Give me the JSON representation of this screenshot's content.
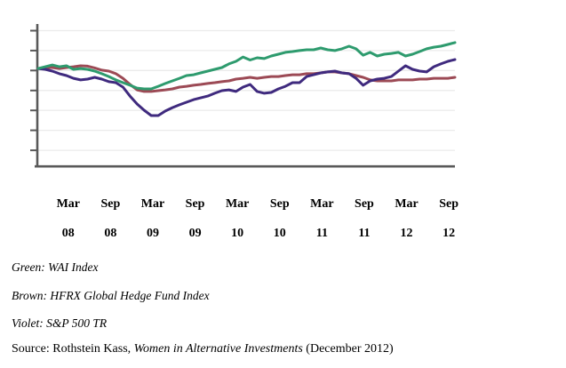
{
  "chart_data": {
    "type": "line",
    "title": "",
    "xlabel": "",
    "ylabel": "",
    "x_tick_labels": [
      {
        "month": "Mar",
        "year": "08"
      },
      {
        "month": "Sep",
        "year": "08"
      },
      {
        "month": "Mar",
        "year": "09"
      },
      {
        "month": "Sep",
        "year": "09"
      },
      {
        "month": "Mar",
        "year": "10"
      },
      {
        "month": "Sep",
        "year": "10"
      },
      {
        "month": "Mar",
        "year": "11"
      },
      {
        "month": "Sep",
        "year": "11"
      },
      {
        "month": "Mar",
        "year": "12"
      },
      {
        "month": "Sep",
        "year": "12"
      }
    ],
    "ylim": [
      52,
      122
    ],
    "yticks": [
      60,
      70,
      80,
      90,
      100,
      110,
      120
    ],
    "ytick_labels_visible": false,
    "grid": true,
    "legend_position": "text-below-chart",
    "value_note": "Y-axis carries no numeric labels; series values are estimated index levels read against gridlines with the common starting level taken as 100 and one gridline step as 10.",
    "series": [
      {
        "name": "WAI Index",
        "color_word": "Green",
        "color": "#2e9b6e",
        "values": [
          101.0,
          101.9,
          102.8,
          101.9,
          102.4,
          100.6,
          101.0,
          100.6,
          99.7,
          98.4,
          97.0,
          95.3,
          93.9,
          92.6,
          91.2,
          90.8,
          90.8,
          92.1,
          93.5,
          94.8,
          96.1,
          97.5,
          97.9,
          98.8,
          99.7,
          100.6,
          101.5,
          103.3,
          104.6,
          106.8,
          105.3,
          106.4,
          106.0,
          107.3,
          108.2,
          109.1,
          109.5,
          110.0,
          110.4,
          110.4,
          111.3,
          110.4,
          110.0,
          110.9,
          112.2,
          110.9,
          107.7,
          109.1,
          107.3,
          108.2,
          108.6,
          109.1,
          107.3,
          108.2,
          109.5,
          110.9,
          111.7,
          112.2,
          113.1,
          114.0
        ]
      },
      {
        "name": "HFRX Global Hedge Fund Index",
        "color_word": "Brown",
        "color": "#9c4a55",
        "values": [
          101.0,
          101.5,
          101.5,
          101.0,
          101.5,
          101.9,
          102.4,
          102.2,
          101.3,
          100.2,
          99.7,
          98.4,
          96.1,
          93.0,
          90.3,
          89.5,
          89.5,
          89.9,
          90.3,
          90.8,
          91.7,
          92.1,
          92.6,
          93.0,
          93.5,
          93.9,
          94.4,
          94.8,
          95.7,
          96.1,
          96.6,
          96.1,
          96.6,
          97.0,
          97.0,
          97.5,
          97.9,
          97.9,
          98.4,
          98.4,
          98.8,
          99.3,
          99.3,
          98.8,
          98.4,
          97.5,
          96.6,
          95.3,
          94.8,
          94.8,
          94.8,
          95.3,
          95.3,
          95.3,
          95.7,
          95.7,
          96.1,
          96.1,
          96.1,
          96.6
        ]
      },
      {
        "name": "S&P 500 TR",
        "color_word": "Violet",
        "color": "#3f2a7e",
        "values": [
          101.0,
          100.6,
          99.7,
          98.4,
          97.5,
          96.1,
          95.3,
          95.7,
          96.6,
          95.7,
          94.4,
          93.9,
          91.7,
          87.2,
          83.2,
          80.1,
          77.4,
          77.4,
          79.7,
          81.4,
          82.8,
          84.1,
          85.4,
          86.3,
          87.2,
          88.6,
          89.9,
          90.3,
          89.5,
          91.7,
          93.0,
          89.5,
          88.6,
          89.0,
          90.8,
          92.1,
          93.9,
          93.9,
          97.0,
          97.9,
          98.8,
          99.3,
          99.7,
          98.8,
          98.4,
          96.1,
          92.6,
          94.8,
          95.7,
          96.1,
          97.0,
          99.7,
          102.4,
          100.6,
          99.7,
          99.3,
          101.9,
          103.3,
          104.6,
          105.5
        ]
      }
    ]
  },
  "legend": {
    "items": [
      {
        "text": "Green: WAI Index"
      },
      {
        "text": "Brown: HFRX Global Hedge Fund Index"
      },
      {
        "text": "Violet: S&P 500 TR"
      }
    ]
  },
  "source": {
    "prefix": "Source: Rothstein Kass, ",
    "title": "Women in Alternative Investments",
    "suffix": " (December 2012)"
  },
  "colors": {
    "axis": "#595959",
    "grid": "#ebebeb",
    "text": "#000000",
    "background": "#ffffff"
  }
}
